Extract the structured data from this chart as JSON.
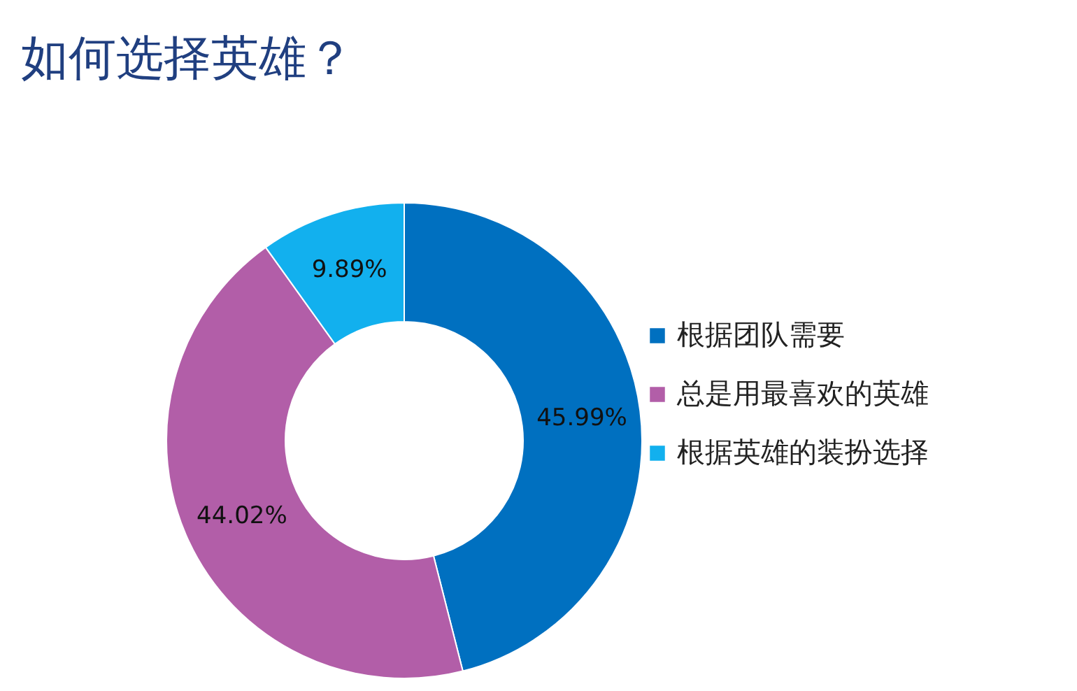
{
  "chart_data": {
    "type": "donut",
    "title": "如何选择英雄？",
    "categories": [
      "根据团队需要",
      "总是用最喜欢的英雄",
      "根据英雄的装扮选择"
    ],
    "values": [
      45.99,
      44.02,
      9.89
    ],
    "colors": [
      "#0070c0",
      "#b25ea8",
      "#12b0ee"
    ],
    "value_labels": [
      "45.99%",
      "44.02%",
      "9.89%"
    ],
    "legend": "right"
  }
}
